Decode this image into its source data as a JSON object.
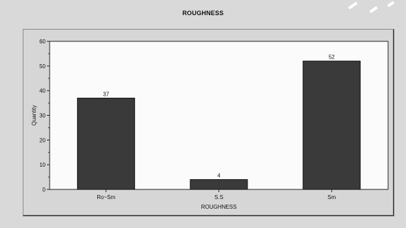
{
  "chart_data": {
    "type": "bar",
    "title": "ROUGHNESS",
    "categories": [
      "Ro~Sm",
      "S.S",
      "Sm"
    ],
    "values": [
      37,
      4,
      52
    ],
    "data_labels": [
      "37",
      "4",
      "52"
    ],
    "xlabel": "ROUGHNESS",
    "ylabel": "Quantity",
    "ylim": [
      0,
      60
    ],
    "yticks": [
      "0",
      "10",
      "20",
      "30",
      "40",
      "50",
      "60"
    ],
    "grid": false,
    "legend": "none",
    "bar_color": "#3a3a3a",
    "plot_background": "#fbfbfb"
  }
}
